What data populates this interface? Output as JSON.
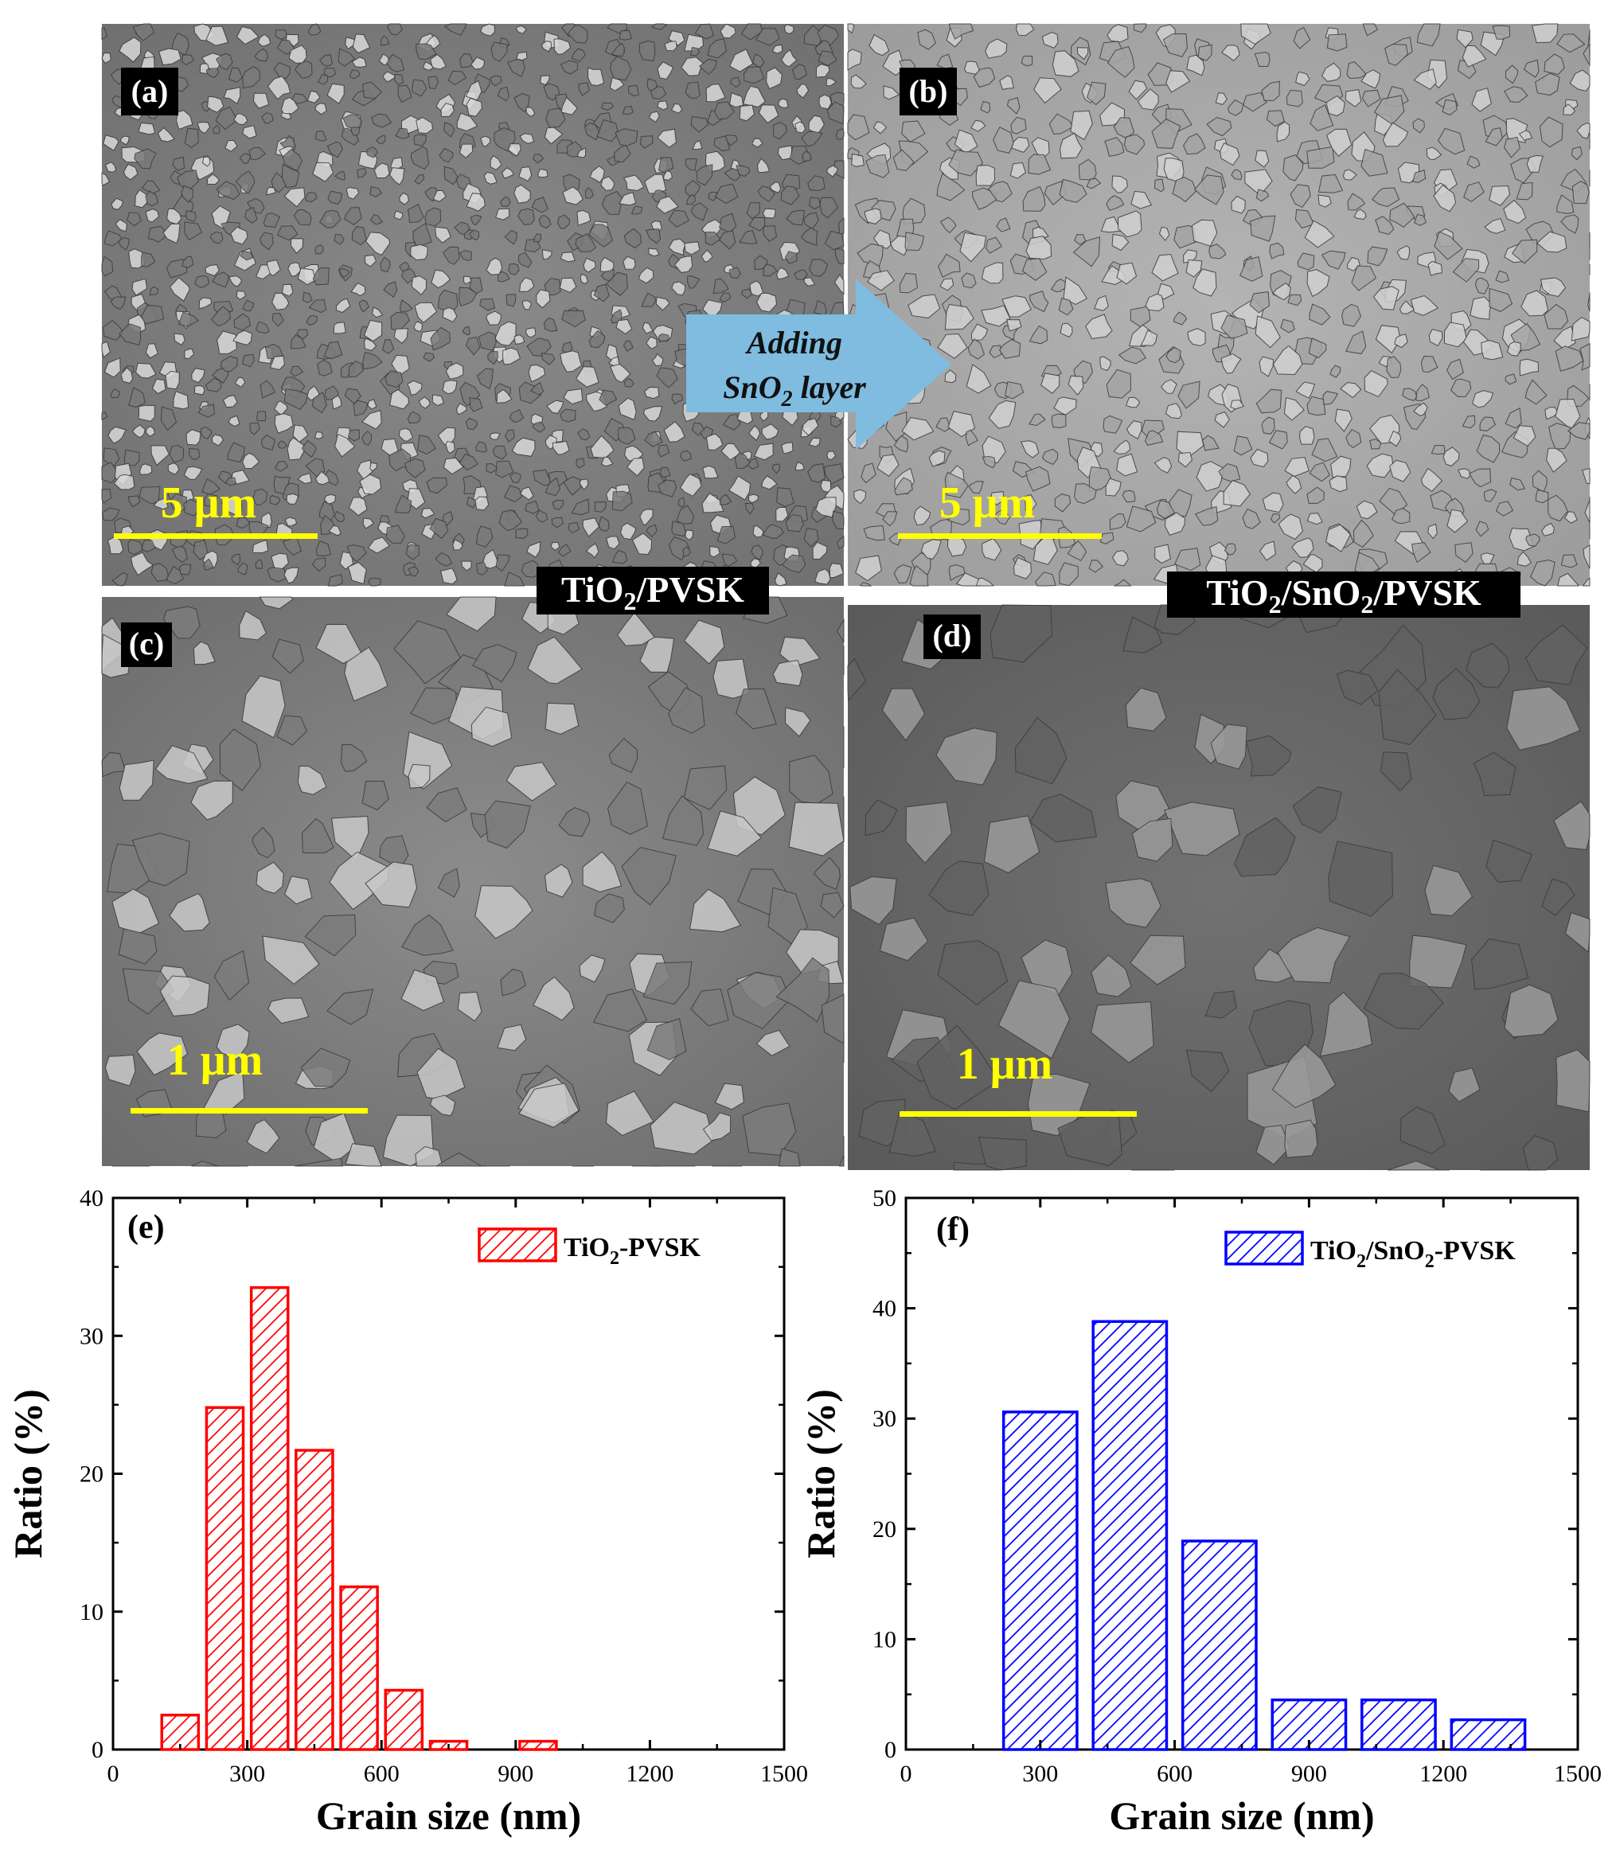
{
  "sem": {
    "panels": [
      {
        "label": "(a)",
        "scale": "5 μm"
      },
      {
        "label": "(b)",
        "scale": "5 μm"
      },
      {
        "label": "(c)",
        "scale": "1 μm"
      },
      {
        "label": "(d)",
        "scale": "1 μm"
      }
    ],
    "arrow": {
      "line1": "Adding",
      "line2_main": "SnO",
      "line2_sub": "2",
      "line2_end": " layer"
    },
    "sample_labels": {
      "left": [
        {
          "t": "TiO",
          "sub": false
        },
        {
          "t": "2",
          "sub": true
        },
        {
          "t": "/PVSK",
          "sub": false
        }
      ],
      "right": [
        {
          "t": "TiO",
          "sub": false
        },
        {
          "t": "2",
          "sub": true
        },
        {
          "t": "/SnO",
          "sub": false
        },
        {
          "t": "2",
          "sub": true
        },
        {
          "t": "/PVSK",
          "sub": false
        }
      ]
    },
    "colors": {
      "scale_bar": "#ffff00",
      "arrow": "#7fbce0",
      "label_bg": "#000000",
      "label_fg": "#ffffff"
    }
  },
  "chart_data": [
    {
      "type": "bar",
      "panel_label": "(e)",
      "xlabel": "Grain size (nm)",
      "ylabel": "Ratio (%)",
      "xlim": [
        0,
        1500
      ],
      "ylim": [
        0,
        40
      ],
      "xticks": [
        0,
        300,
        600,
        900,
        1200,
        1500
      ],
      "yticks": [
        0,
        10,
        20,
        30,
        40
      ],
      "bin_width": 100,
      "color": "#ff0000",
      "legend": {
        "parts": [
          {
            "t": "TiO",
            "sub": false
          },
          {
            "t": "2",
            "sub": true
          },
          {
            "t": "-PVSK",
            "sub": false
          }
        ],
        "placement": "top-right"
      },
      "series": [
        {
          "name": "TiO2-PVSK",
          "x": [
            150,
            250,
            350,
            450,
            550,
            650,
            750,
            950
          ],
          "values": [
            2.5,
            24.8,
            33.5,
            21.7,
            11.8,
            4.3,
            0.6,
            0.6
          ]
        }
      ]
    },
    {
      "type": "bar",
      "panel_label": "(f)",
      "xlabel": "Grain size (nm)",
      "ylabel": "Ratio (%)",
      "xlim": [
        0,
        1500
      ],
      "ylim": [
        0,
        50
      ],
      "xticks": [
        0,
        300,
        600,
        900,
        1200,
        1500
      ],
      "yticks": [
        0,
        10,
        20,
        30,
        40,
        50
      ],
      "bin_width": 200,
      "color": "#0000ff",
      "legend": {
        "parts": [
          {
            "t": "TiO",
            "sub": false
          },
          {
            "t": "2",
            "sub": true
          },
          {
            "t": "/SnO",
            "sub": false
          },
          {
            "t": "2",
            "sub": true
          },
          {
            "t": "-PVSK",
            "sub": false
          }
        ],
        "placement": "top-right"
      },
      "series": [
        {
          "name": "TiO2/SnO2-PVSK",
          "x": [
            300,
            500,
            700,
            900,
            1100,
            1300
          ],
          "values": [
            30.6,
            38.8,
            18.9,
            4.5,
            4.5,
            2.7
          ]
        }
      ]
    }
  ]
}
